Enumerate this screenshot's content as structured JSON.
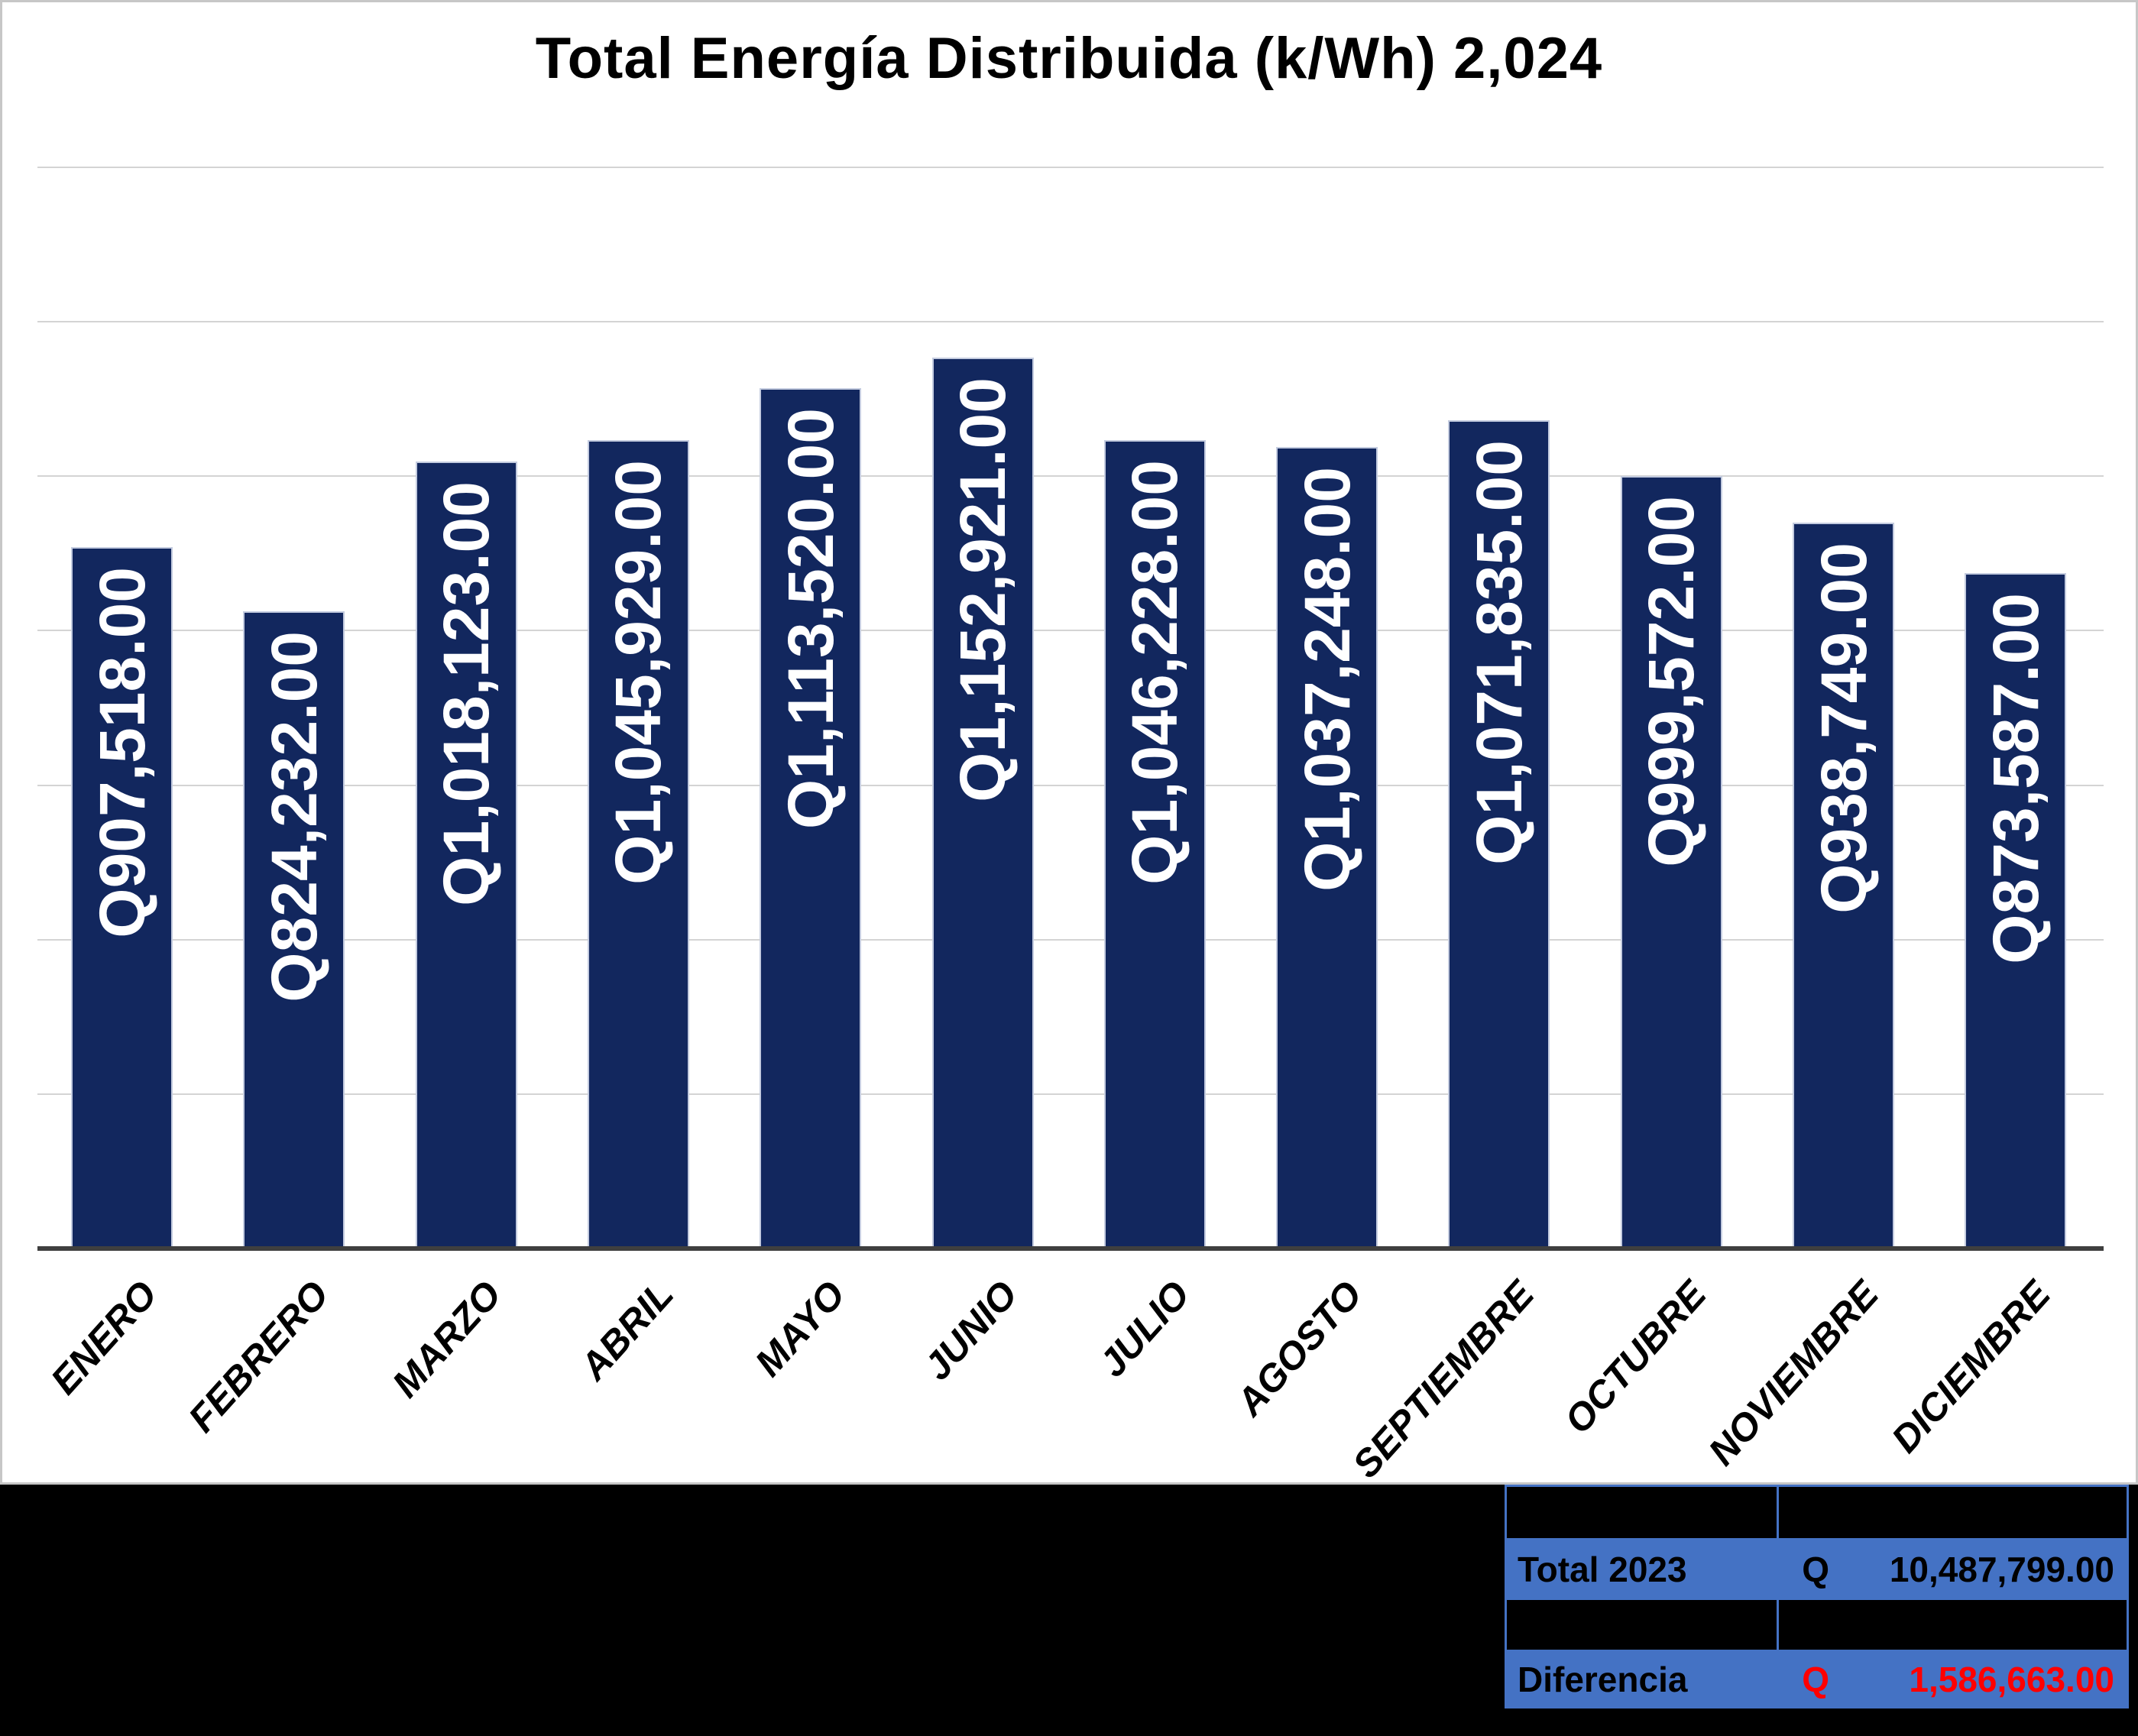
{
  "chart_data": {
    "type": "bar",
    "title": "Total Energía Distribuida (k/Wh) 2,024",
    "categories": [
      "ENERO",
      "FEBRERO",
      "MARZO",
      "ABRIL",
      "MAYO",
      "JUNIO",
      "JULIO",
      "AGOSTO",
      "SEPTIEMBRE",
      "OCTUBRE",
      "NOVIEMBRE",
      "DICIEMBRE"
    ],
    "values": [
      907518,
      824232,
      1018123,
      1045929,
      1113520,
      1152921,
      1046228,
      1037248,
      1071835,
      999572,
      938749,
      873587
    ],
    "value_labels": [
      "Q907,518.00",
      "Q824,232.00",
      "Q1,018,123.00",
      "Q1,045,929.00",
      "Q1,113,520.00",
      "Q1,152,921.00",
      "Q1,046,228.00",
      "Q1,037,248.00",
      "Q1,071,835.00",
      "Q999,572.00",
      "Q938,749.00",
      "Q873,587.00"
    ],
    "xlabel": "",
    "ylabel": "",
    "ylim": [
      0,
      1400000
    ],
    "gridline_step": 200000,
    "grid": true,
    "legend": false,
    "bar_color": "#12275e",
    "bar_label_color": "#ffffff",
    "gridline_color": "#d4d4d4",
    "axis_line_color": "#3f3f3f"
  },
  "summary_table": {
    "fill_color": "#4472c4",
    "border_color": "#4472c4",
    "rows": [
      {
        "label": "",
        "currency": "",
        "value": ""
      },
      {
        "label": "Total 2023",
        "currency": "Q",
        "value": "10,487,799.00",
        "value_color": "#000000"
      },
      {
        "label": "",
        "currency": "",
        "value": ""
      },
      {
        "label": "Diferencia",
        "currency": "Q",
        "value": "1,586,663.00",
        "value_color": "#ff0000"
      }
    ]
  }
}
